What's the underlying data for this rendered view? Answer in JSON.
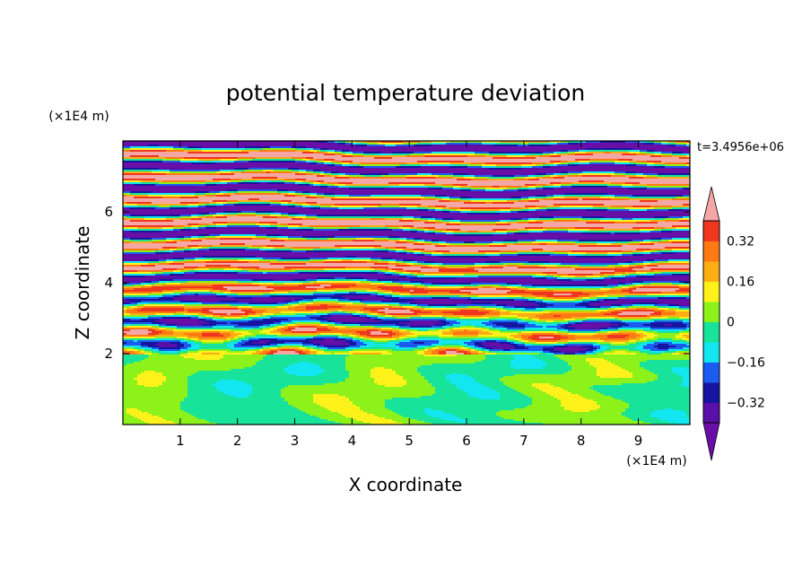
{
  "chart_data": {
    "type": "heatmap",
    "title": "potential temperature deviation",
    "xlabel": "X coordinate",
    "ylabel": "Z coordinate",
    "x_unit": "(×1E4 m)",
    "z_unit": "(×1E4 m)",
    "timestamp": "t=3.4956e+06",
    "xlim": [
      0,
      9.9
    ],
    "ylim": [
      0,
      8.0
    ],
    "x_ticks": [
      "1",
      "2",
      "3",
      "4",
      "5",
      "6",
      "7",
      "8",
      "9"
    ],
    "y_ticks": [
      "2",
      "4",
      "6"
    ],
    "colorbar": {
      "levels": [
        -0.4,
        -0.32,
        -0.24,
        -0.16,
        -0.08,
        0,
        0.08,
        0.16,
        0.24,
        0.32,
        0.4
      ],
      "tick_labels": [
        "0.32",
        "0.16",
        "0",
        "−0.16",
        "−0.32"
      ],
      "tick_values": [
        0.32,
        0.16,
        0,
        -0.16,
        -0.32
      ],
      "colors": [
        "#6a0ea8",
        "#5a0fa8",
        "#1515a0",
        "#1c5bf0",
        "#12e6f0",
        "#17e39a",
        "#8cf21a",
        "#fff21a",
        "#ffad14",
        "#ff7a12",
        "#f0361f",
        "#f5a7a7"
      ],
      "extend": "both"
    },
    "fields": {
      "lower_layer": "z < 2: values near 0 (green / light green mottled)",
      "transition_layer": "z 2–5: mixed high-variance bands",
      "upper_layer": "z > 5: alternating bands of about +0.4 (pink) and -0.4 (purple)"
    }
  }
}
